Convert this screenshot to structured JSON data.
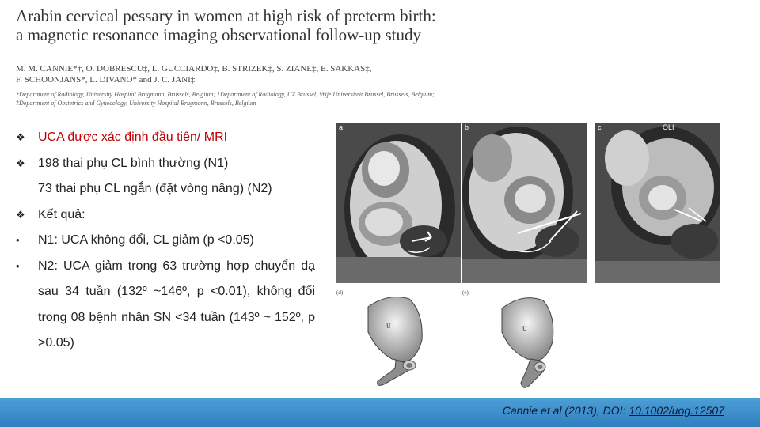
{
  "paper": {
    "title_line1": "Arabin cervical pessary in women at high risk of preterm birth:",
    "title_line2": "a magnetic resonance imaging observational follow-up study",
    "authors_line1": "M. M. CANNIE*†, O. DOBRESCU‡, L. GUCCIARDO‡, B. STRIZEK‡, S. ZIANE‡, E. SAKKAS‡,",
    "authors_line2": "F. SCHOONJANS*, L. DIVANO* and J. C. JANI‡",
    "affiliations": "*Department of Radiology, University Hospital Brugmann, Brussels, Belgium; †Department of Radiology, UZ Brussel, Vrije Universiteit Brussel, Brussels, Belgium; ‡Department of Obstetrics and Gynecology, University Hospital Brugmann, Brussels, Belgium"
  },
  "bullets": [
    {
      "marker": "❖",
      "text": "UCA được xác định đầu tiên/ MRI"
    },
    {
      "marker": "❖",
      "text": "198 thai phụ CL bình thường (N1)"
    },
    {
      "marker": "",
      "text": "73 thai phụ CL ngắn (đặt vòng nâng) (N2)"
    },
    {
      "marker": "❖",
      "text": "Kết quả:"
    },
    {
      "marker": "•",
      "text": "N1: UCA không đổi, CL giảm (p <0.05)"
    },
    {
      "marker": "•",
      "text": "N2: UCA giảm trong 63 trường hợp chuyển dạ sau 34 tuần (132º ~146º, p <0.01), không đổi trong 08 bệnh nhân SN <34 tuần (143º ~ 152º, p >0.05)"
    }
  ],
  "figure": {
    "panel_a": "a",
    "panel_b": "b",
    "panel_c": "c",
    "panel_c_tag": "OLI",
    "panel_d": "(d)",
    "panel_e": "(e)",
    "uterus_label": "U"
  },
  "footer": {
    "citation_prefix": "Cannie et al (2013), DOI: ",
    "doi": "10.1002/uog.12507"
  }
}
